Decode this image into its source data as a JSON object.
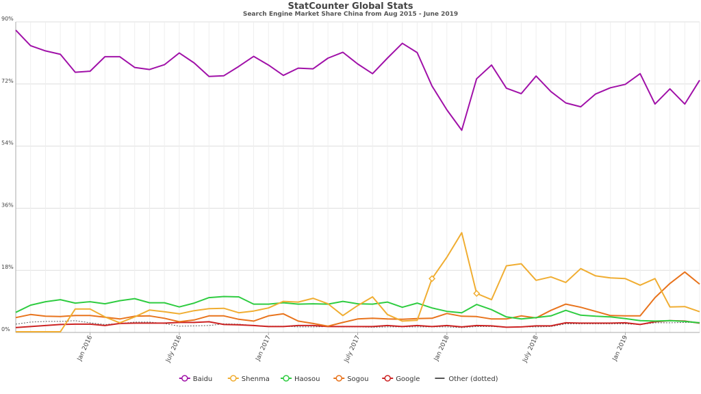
{
  "header": {
    "title": "StatCounter Global Stats",
    "subtitle": "Search Engine Market Share China from Aug 2015 - June 2019"
  },
  "chart_data": {
    "type": "line",
    "title": "StatCounter Global Stats",
    "subtitle": "Search Engine Market Share China from Aug 2015 - June 2019",
    "x": [
      "2015-08",
      "2015-09",
      "2015-10",
      "2015-11",
      "2015-12",
      "2016-01",
      "2016-02",
      "2016-03",
      "2016-04",
      "2016-05",
      "2016-06",
      "2016-07",
      "2016-08",
      "2016-09",
      "2016-10",
      "2016-11",
      "2016-12",
      "2017-01",
      "2017-02",
      "2017-03",
      "2017-04",
      "2017-05",
      "2017-06",
      "2017-07",
      "2017-08",
      "2017-09",
      "2017-10",
      "2017-11",
      "2017-12",
      "2018-01",
      "2018-02",
      "2018-03",
      "2018-04",
      "2018-05",
      "2018-06",
      "2018-07",
      "2018-08",
      "2018-09",
      "2018-10",
      "2018-11",
      "2018-12",
      "2019-01",
      "2019-02",
      "2019-03",
      "2019-04",
      "2019-05",
      "2019-06"
    ],
    "x_tick_labels": [
      {
        "label": "Jan 2016",
        "at": "2016-01"
      },
      {
        "label": "July 2016",
        "at": "2016-07"
      },
      {
        "label": "Jan 2017",
        "at": "2017-01"
      },
      {
        "label": "July 2017",
        "at": "2017-07"
      },
      {
        "label": "Jan 2018",
        "at": "2018-01"
      },
      {
        "label": "July 2018",
        "at": "2018-07"
      },
      {
        "label": "Jan 2019",
        "at": "2019-01"
      }
    ],
    "y_tick_labels": [
      "0%",
      "18%",
      "36%",
      "54%",
      "72%",
      "90%"
    ],
    "ylim": [
      0,
      90
    ],
    "grid": true,
    "legend_position": "bottom",
    "series": [
      {
        "name": "Baidu",
        "color": "#a010a8",
        "style": "solid",
        "values": [
          87.6,
          83.1,
          81.6,
          80.6,
          75.4,
          75.7,
          79.9,
          79.9,
          76.8,
          76.2,
          77.6,
          81.0,
          78.1,
          74.2,
          74.4,
          77.1,
          80.0,
          77.5,
          74.5,
          76.6,
          76.4,
          79.5,
          81.2,
          77.8,
          75.0,
          79.5,
          83.8,
          81.1,
          71.4,
          64.5,
          58.6,
          73.5,
          77.5,
          70.8,
          69.2,
          74.3,
          69.8,
          66.5,
          65.4,
          69.1,
          70.9,
          71.9,
          75.0,
          66.2,
          70.6,
          66.2,
          73.1
        ]
      },
      {
        "name": "Shenma",
        "color": "#f0ad31",
        "style": "solid",
        "values": [
          0.2,
          0.2,
          0.2,
          0.2,
          6.8,
          6.8,
          4.5,
          2.8,
          4.5,
          6.5,
          6.0,
          5.4,
          6.3,
          6.9,
          7.0,
          5.7,
          6.2,
          7.1,
          9.0,
          8.8,
          9.9,
          8.3,
          4.9,
          7.8,
          10.3,
          5.2,
          3.3,
          3.5,
          15.6,
          21.8,
          28.9,
          11.3,
          9.5,
          19.3,
          19.9,
          15.1,
          16.1,
          14.5,
          18.5,
          16.4,
          15.8,
          15.6,
          13.7,
          15.6,
          7.4,
          7.5,
          6.0
        ]
      },
      {
        "name": "Haosou",
        "color": "#2ecc40",
        "style": "solid",
        "values": [
          5.8,
          7.9,
          8.9,
          9.5,
          8.5,
          8.9,
          8.3,
          9.2,
          9.8,
          8.6,
          8.6,
          7.4,
          8.5,
          10.1,
          10.4,
          10.3,
          8.2,
          8.2,
          8.6,
          8.2,
          8.3,
          8.2,
          9.0,
          8.3,
          8.2,
          8.8,
          7.3,
          8.5,
          7.1,
          6.1,
          5.7,
          8.1,
          6.6,
          4.5,
          3.9,
          4.3,
          4.8,
          6.4,
          5.0,
          4.7,
          4.5,
          4.0,
          3.4,
          3.3,
          3.4,
          3.2,
          2.8
        ]
      },
      {
        "name": "Sogou",
        "color": "#e8731c",
        "style": "solid",
        "values": [
          4.3,
          5.2,
          4.7,
          4.6,
          4.9,
          4.9,
          4.4,
          3.9,
          4.7,
          4.8,
          4.1,
          3.1,
          3.6,
          4.8,
          4.8,
          3.8,
          3.3,
          4.8,
          5.4,
          3.3,
          2.6,
          1.8,
          2.9,
          3.9,
          4.1,
          3.9,
          3.8,
          4.0,
          4.1,
          5.5,
          4.7,
          4.6,
          3.9,
          3.9,
          4.8,
          4.2,
          6.4,
          8.2,
          7.3,
          6.1,
          4.9,
          4.8,
          4.8,
          10.1,
          14.2,
          17.5,
          14.0
        ]
      },
      {
        "name": "Google",
        "color": "#cc2222",
        "style": "solid",
        "values": [
          1.4,
          1.7,
          2.0,
          2.3,
          2.4,
          2.4,
          2.0,
          2.6,
          2.7,
          2.7,
          2.7,
          2.9,
          2.9,
          3.1,
          2.3,
          2.2,
          2.0,
          1.7,
          1.7,
          2.0,
          2.0,
          1.7,
          1.7,
          1.7,
          1.7,
          2.0,
          1.7,
          2.0,
          1.7,
          2.0,
          1.6,
          2.0,
          1.9,
          1.5,
          1.6,
          1.9,
          1.9,
          2.8,
          2.7,
          2.7,
          2.7,
          2.8,
          2.3,
          3.1,
          3.4,
          3.3,
          2.7
        ]
      },
      {
        "name": "Other (dotted)",
        "color": "#555555",
        "style": "dotted",
        "values": [
          2.4,
          3.0,
          3.2,
          3.2,
          3.4,
          2.8,
          2.3,
          2.6,
          3.0,
          3.0,
          2.6,
          1.8,
          1.9,
          2.0,
          2.5,
          2.4,
          2.0,
          1.8,
          1.8,
          1.6,
          1.6,
          1.7,
          1.6,
          1.6,
          1.5,
          1.6,
          1.6,
          1.6,
          1.6,
          1.6,
          1.4,
          1.7,
          1.7,
          1.5,
          1.6,
          1.6,
          1.7,
          2.5,
          2.5,
          2.5,
          2.5,
          2.5,
          2.3,
          2.8,
          2.8,
          2.9,
          2.9
        ]
      }
    ],
    "highlighted_points": [
      {
        "series": "Shenma",
        "x": "2017-12",
        "value": 15.6
      },
      {
        "series": "Shenma",
        "x": "2018-03",
        "value": 11.3
      }
    ]
  }
}
